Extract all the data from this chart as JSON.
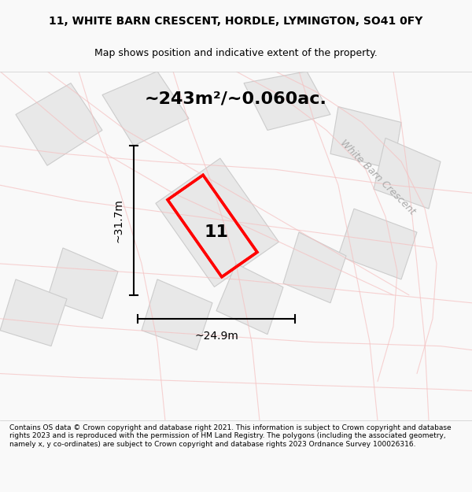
{
  "title_line1": "11, WHITE BARN CRESCENT, HORDLE, LYMINGTON, SO41 0FY",
  "title_line2": "Map shows position and indicative extent of the property.",
  "area_text": "~243m²/~0.060ac.",
  "width_label": "~24.9m",
  "height_label": "~31.7m",
  "plot_number": "11",
  "road_label": "White Barn Crescent",
  "footer_text": "Contains OS data © Crown copyright and database right 2021. This information is subject to Crown copyright and database rights 2023 and is reproduced with the permission of HM Land Registry. The polygons (including the associated geometry, namely x, y co-ordinates) are subject to Crown copyright and database rights 2023 Ordnance Survey 100026316.",
  "bg_color": "#f9f9f9",
  "map_bg": "#ffffff",
  "plot_color_fill": "#e8e8e8",
  "plot_outline_color": "red",
  "road_color": "#e8e8e8",
  "road_line_color": "#cccccc",
  "light_red": "#f5c0c0",
  "title_bg": "#ffffff"
}
